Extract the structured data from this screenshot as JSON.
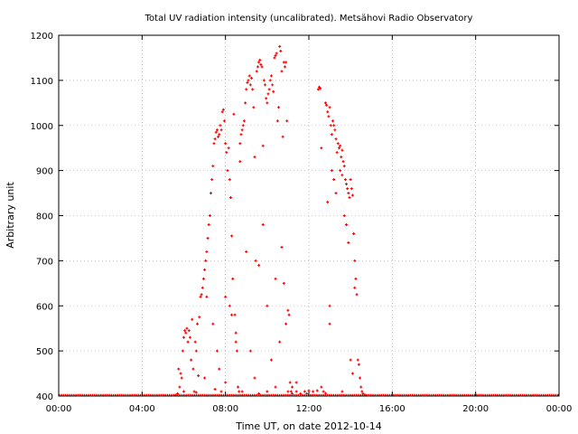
{
  "chart_data": {
    "type": "scatter",
    "title": "Total UV radiation intensity (uncalibrated). Metsähovi Radio Observatory",
    "xlabel": "Time UT, on date 2012-10-14",
    "ylabel": "Arbitrary unit",
    "xlim": [
      0,
      24
    ],
    "ylim": [
      400,
      1200
    ],
    "x_ticks": [
      0,
      4,
      8,
      12,
      16,
      20,
      24
    ],
    "x_tick_labels": [
      "00:00",
      "04:00",
      "08:00",
      "12:00",
      "16:00",
      "20:00",
      "00:00"
    ],
    "y_ticks": [
      400,
      500,
      600,
      700,
      800,
      900,
      1000,
      1100,
      1200
    ],
    "y_tick_labels": [
      "400",
      "500",
      "600",
      "700",
      "800",
      "900",
      "1000",
      "1100",
      "1200"
    ],
    "grid": true,
    "color": "#ff0000",
    "baseline": {
      "value": 401,
      "x_start": 0,
      "x_end": 24
    },
    "points": [
      [
        5.75,
        460
      ],
      [
        5.8,
        420
      ],
      [
        5.85,
        450
      ],
      [
        5.9,
        440
      ],
      [
        5.95,
        500
      ],
      [
        6.0,
        530
      ],
      [
        6.05,
        545
      ],
      [
        6.1,
        540
      ],
      [
        6.15,
        550
      ],
      [
        6.2,
        520
      ],
      [
        6.25,
        545
      ],
      [
        6.3,
        530
      ],
      [
        6.35,
        480
      ],
      [
        6.4,
        570
      ],
      [
        6.45,
        460
      ],
      [
        6.5,
        410
      ],
      [
        6.55,
        520
      ],
      [
        6.6,
        500
      ],
      [
        6.65,
        560
      ],
      [
        6.7,
        445
      ],
      [
        6.75,
        575
      ],
      [
        6.8,
        620
      ],
      [
        6.85,
        625
      ],
      [
        6.9,
        640
      ],
      [
        6.95,
        660
      ],
      [
        7.0,
        680
      ],
      [
        7.05,
        700
      ],
      [
        7.1,
        720
      ],
      [
        7.15,
        750
      ],
      [
        7.2,
        780
      ],
      [
        7.25,
        800
      ],
      [
        7.3,
        850
      ],
      [
        7.35,
        880
      ],
      [
        7.4,
        910
      ],
      [
        7.45,
        960
      ],
      [
        7.5,
        970
      ],
      [
        7.55,
        985
      ],
      [
        7.6,
        990
      ],
      [
        7.65,
        975
      ],
      [
        7.7,
        980
      ],
      [
        7.75,
        1000
      ],
      [
        7.8,
        990
      ],
      [
        7.85,
        1030
      ],
      [
        7.9,
        1035
      ],
      [
        7.95,
        1010
      ],
      [
        8.0,
        960
      ],
      [
        8.05,
        940
      ],
      [
        8.1,
        900
      ],
      [
        8.15,
        950
      ],
      [
        8.2,
        880
      ],
      [
        8.25,
        840
      ],
      [
        8.3,
        755
      ],
      [
        8.35,
        660
      ],
      [
        8.4,
        1025
      ],
      [
        8.45,
        580
      ],
      [
        8.5,
        540
      ],
      [
        8.55,
        500
      ],
      [
        8.6,
        420
      ],
      [
        8.65,
        410
      ],
      [
        8.7,
        960
      ],
      [
        8.75,
        980
      ],
      [
        8.8,
        990
      ],
      [
        8.85,
        1000
      ],
      [
        8.9,
        1010
      ],
      [
        8.95,
        1050
      ],
      [
        9.0,
        1080
      ],
      [
        9.05,
        1095
      ],
      [
        9.1,
        1100
      ],
      [
        9.15,
        1110
      ],
      [
        9.2,
        1090
      ],
      [
        9.25,
        1105
      ],
      [
        9.3,
        1080
      ],
      [
        9.35,
        1040
      ],
      [
        9.4,
        930
      ],
      [
        9.45,
        700
      ],
      [
        9.5,
        1120
      ],
      [
        9.55,
        1130
      ],
      [
        9.6,
        1140
      ],
      [
        9.65,
        1145
      ],
      [
        9.7,
        1135
      ],
      [
        9.75,
        1130
      ],
      [
        9.8,
        955
      ],
      [
        9.85,
        1100
      ],
      [
        9.9,
        1090
      ],
      [
        9.95,
        1060
      ],
      [
        10.0,
        1050
      ],
      [
        10.05,
        1070
      ],
      [
        10.1,
        1080
      ],
      [
        10.15,
        1100
      ],
      [
        10.2,
        1110
      ],
      [
        10.25,
        1090
      ],
      [
        10.3,
        1075
      ],
      [
        10.35,
        1150
      ],
      [
        10.4,
        1155
      ],
      [
        10.45,
        1160
      ],
      [
        10.5,
        1010
      ],
      [
        10.55,
        1040
      ],
      [
        10.6,
        1175
      ],
      [
        10.65,
        1165
      ],
      [
        10.7,
        1120
      ],
      [
        10.75,
        975
      ],
      [
        10.8,
        1140
      ],
      [
        10.85,
        1130
      ],
      [
        10.9,
        1140
      ],
      [
        10.95,
        1010
      ],
      [
        11.0,
        590
      ],
      [
        11.05,
        580
      ],
      [
        11.1,
        430
      ],
      [
        11.15,
        410
      ],
      [
        11.2,
        405
      ],
      [
        7.1,
        620
      ],
      [
        7.4,
        560
      ],
      [
        7.6,
        500
      ],
      [
        7.7,
        460
      ],
      [
        7.8,
        410
      ],
      [
        8.0,
        620
      ],
      [
        8.2,
        600
      ],
      [
        8.3,
        580
      ],
      [
        8.5,
        520
      ],
      [
        8.7,
        920
      ],
      [
        9.0,
        720
      ],
      [
        9.2,
        500
      ],
      [
        9.4,
        440
      ],
      [
        9.6,
        690
      ],
      [
        9.8,
        780
      ],
      [
        10.0,
        600
      ],
      [
        10.2,
        480
      ],
      [
        10.4,
        660
      ],
      [
        10.6,
        520
      ],
      [
        10.7,
        730
      ],
      [
        10.8,
        650
      ],
      [
        10.9,
        560
      ],
      [
        11.0,
        410
      ],
      [
        11.2,
        420
      ],
      [
        11.4,
        410
      ],
      [
        11.6,
        405
      ],
      [
        11.8,
        410
      ],
      [
        12.0,
        412
      ],
      [
        12.45,
        1080
      ],
      [
        12.5,
        1085
      ],
      [
        12.55,
        1082
      ],
      [
        12.6,
        950
      ],
      [
        12.8,
        1050
      ],
      [
        12.85,
        1045
      ],
      [
        12.9,
        1030
      ],
      [
        12.95,
        1020
      ],
      [
        13.0,
        1040
      ],
      [
        13.05,
        1000
      ],
      [
        13.1,
        980
      ],
      [
        13.15,
        1010
      ],
      [
        13.2,
        1000
      ],
      [
        13.25,
        990
      ],
      [
        13.3,
        970
      ],
      [
        13.35,
        940
      ],
      [
        13.4,
        960
      ],
      [
        13.45,
        950
      ],
      [
        13.5,
        955
      ],
      [
        13.55,
        930
      ],
      [
        13.6,
        945
      ],
      [
        13.65,
        920
      ],
      [
        13.7,
        910
      ],
      [
        13.75,
        880
      ],
      [
        13.8,
        870
      ],
      [
        13.85,
        860
      ],
      [
        13.9,
        850
      ],
      [
        13.95,
        840
      ],
      [
        14.0,
        880
      ],
      [
        14.05,
        860
      ],
      [
        14.1,
        845
      ],
      [
        14.15,
        760
      ],
      [
        14.2,
        700
      ],
      [
        14.25,
        660
      ],
      [
        14.3,
        625
      ],
      [
        14.35,
        480
      ],
      [
        14.4,
        470
      ],
      [
        14.45,
        440
      ],
      [
        14.5,
        420
      ],
      [
        14.55,
        410
      ],
      [
        14.6,
        405
      ],
      [
        12.9,
        830
      ],
      [
        13.0,
        600
      ],
      [
        13.1,
        900
      ],
      [
        13.2,
        880
      ],
      [
        13.3,
        850
      ],
      [
        13.5,
        900
      ],
      [
        13.6,
        890
      ],
      [
        13.7,
        800
      ],
      [
        13.8,
        780
      ],
      [
        13.9,
        740
      ],
      [
        14.0,
        480
      ],
      [
        14.1,
        450
      ],
      [
        14.2,
        640
      ],
      [
        12.6,
        420
      ],
      [
        12.7,
        410
      ],
      [
        13.0,
        560
      ],
      [
        5.7,
        405
      ],
      [
        5.6,
        402
      ],
      [
        6.0,
        410
      ],
      [
        6.6,
        408
      ],
      [
        7.0,
        440
      ],
      [
        7.5,
        415
      ],
      [
        8.0,
        430
      ],
      [
        8.8,
        410
      ],
      [
        9.6,
        405
      ],
      [
        10.0,
        410
      ],
      [
        10.4,
        420
      ],
      [
        11.4,
        430
      ],
      [
        11.9,
        405
      ],
      [
        12.2,
        410
      ],
      [
        12.4,
        412
      ],
      [
        12.8,
        406
      ],
      [
        13.6,
        410
      ],
      [
        14.7,
        402
      ]
    ]
  }
}
